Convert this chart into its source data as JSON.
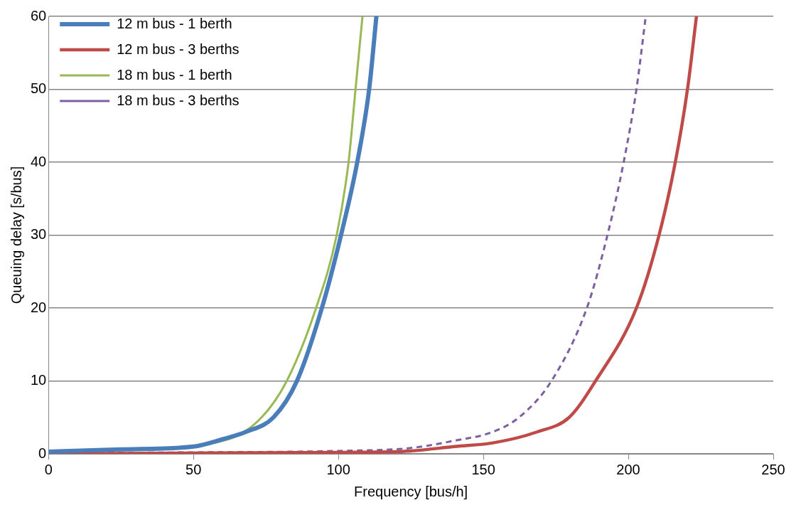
{
  "chart_data": {
    "type": "line",
    "xlabel": "Frequency [bus/h]",
    "ylabel": "Queuing delay [s/bus]",
    "xlim": [
      0,
      250
    ],
    "xticks": [
      0,
      50,
      100,
      150,
      200,
      250
    ],
    "ylim": [
      0,
      60
    ],
    "yticks": [
      0,
      10,
      20,
      30,
      40,
      50,
      60
    ],
    "grid": "y",
    "legend": "top left",
    "marker": "none",
    "series": [
      {
        "name": "12 m bus - 1 berth",
        "color": "#4a7ebb",
        "line_style": "solid",
        "x": [
          0,
          25,
          50,
          60,
          68,
          77.6,
          85.7,
          94.3,
          100.9,
          106.5,
          110.6,
          113.1
        ],
        "values": [
          0.3,
          0.6,
          1,
          2,
          3,
          5,
          10,
          20,
          30,
          40,
          50,
          60
        ]
      },
      {
        "name": "12 m bus - 3 berths",
        "color": "#be4b48",
        "line_style": "solid",
        "x": [
          0,
          50,
          100,
          125,
          140,
          153.3,
          168.5,
          179.6,
          188.7,
          202.8,
          210.6,
          216.2,
          220.4,
          223.5
        ],
        "values": [
          0,
          0.1,
          0.2,
          0.4,
          1,
          1.5,
          3,
          5,
          10,
          20,
          30,
          40,
          50,
          60
        ]
      },
      {
        "name": "18 m bus - 1 berth",
        "color": "#98b954",
        "line_style": "solid",
        "x": [
          0,
          25,
          50,
          62,
          73.5,
          82.2,
          92.3,
          99.4,
          103.5,
          105.9,
          108.3
        ],
        "values": [
          0.1,
          0.5,
          null,
          2,
          5,
          10,
          20,
          30,
          40,
          50,
          60
        ]
      },
      {
        "name": "18 m bus - 3 berths",
        "color": "#7d60a0",
        "line_style": "dashed",
        "x": [
          0,
          50,
          100,
          125,
          140,
          153.2,
          162.3,
          173.5,
          185.7,
          192.8,
          198.4,
          202.8,
          206
        ],
        "values": [
          0.1,
          0.2,
          0.4,
          0.8,
          1.8,
          3,
          5,
          10,
          20,
          30,
          40,
          50,
          60
        ]
      }
    ]
  }
}
